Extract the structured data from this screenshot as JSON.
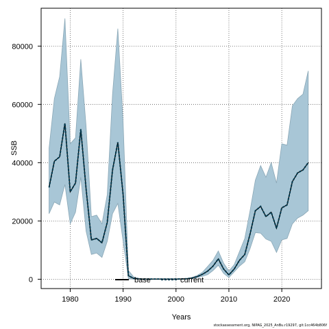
{
  "chart_data": {
    "type": "line",
    "title": "",
    "xlabel": "Years",
    "ylabel": "SSB",
    "xlim": [
      1974.5,
      2027.5
    ],
    "ylim": [
      -3200,
      93000
    ],
    "x_ticks": [
      1980,
      1990,
      2000,
      2010,
      2020
    ],
    "y_ticks": [
      0,
      20000,
      40000,
      60000,
      80000
    ],
    "y_tick_labels": [
      "0",
      "20000",
      "40000",
      "60000",
      "80000"
    ],
    "grid": true,
    "legend_position": "bottom-center",
    "colors": {
      "band": "#a8c6d6",
      "band_edge": "#8aa7b6",
      "current": "#00384d",
      "base": "#000000"
    },
    "x": [
      1976,
      1977,
      1978,
      1979,
      1980,
      1981,
      1982,
      1983,
      1984,
      1985,
      1986,
      1987,
      1988,
      1989,
      1990,
      1991,
      1992,
      1993,
      1994,
      1995,
      1996,
      1997,
      1998,
      1999,
      2000,
      2001,
      2002,
      2003,
      2004,
      2005,
      2006,
      2007,
      2008,
      2009,
      2010,
      2011,
      2012,
      2013,
      2014,
      2015,
      2016,
      2017,
      2018,
      2019,
      2020,
      2021,
      2022,
      2023,
      2024,
      2025
    ],
    "series": [
      {
        "name": "current",
        "style": "dashed",
        "values": [
          31500,
          40500,
          42000,
          53500,
          30000,
          33000,
          51500,
          31000,
          13500,
          14000,
          12500,
          19500,
          37500,
          47000,
          29000,
          1200,
          300,
          100,
          50,
          50,
          50,
          50,
          50,
          50,
          50,
          100,
          150,
          400,
          900,
          1700,
          2800,
          4500,
          7000,
          3500,
          1500,
          3500,
          6500,
          8500,
          15500,
          23500,
          25000,
          21500,
          23000,
          17500,
          24500,
          25500,
          33500,
          36500,
          37500,
          40000
        ],
        "lower": [
          22500,
          26500,
          25500,
          32500,
          19000,
          23000,
          35000,
          16500,
          8500,
          9000,
          7500,
          13000,
          22500,
          26000,
          13000,
          200,
          50,
          50,
          20,
          20,
          20,
          20,
          20,
          20,
          20,
          50,
          80,
          200,
          500,
          1000,
          1600,
          3000,
          4800,
          2000,
          600,
          2500,
          4500,
          6000,
          10500,
          16000,
          15800,
          13800,
          13000,
          9200,
          13500,
          14000,
          19000,
          21000,
          22000,
          23500
        ],
        "upper": [
          45000,
          62000,
          69500,
          89500,
          46500,
          48500,
          75500,
          52500,
          21500,
          22000,
          19000,
          29000,
          63500,
          86000,
          54000,
          3000,
          800,
          300,
          150,
          150,
          150,
          150,
          150,
          150,
          150,
          200,
          300,
          600,
          1300,
          2400,
          4400,
          6500,
          9700,
          5500,
          2800,
          5000,
          9500,
          14000,
          23500,
          34000,
          39000,
          35000,
          40000,
          33000,
          46500,
          46000,
          59500,
          62000,
          63500,
          71500
        ]
      }
    ],
    "legend": [
      {
        "label": "base",
        "style": "solid"
      },
      {
        "label": "current",
        "style": "dashed"
      }
    ]
  },
  "footer": "stockassessment.org, NIPAG_2025_AnBu.r19297, git:1cc464b806f"
}
